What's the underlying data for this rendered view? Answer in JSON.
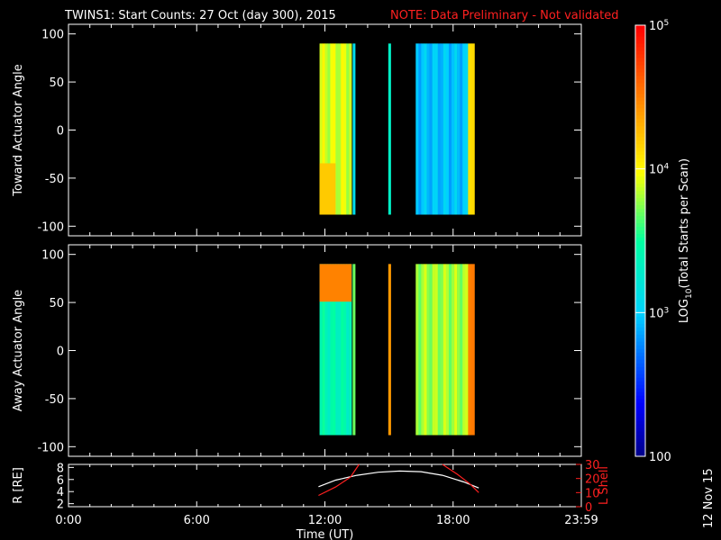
{
  "header": {
    "title": "TWINS1: Start Counts: 27 Oct (day 300), 2015",
    "note": "NOTE: Data Preliminary - Not validated"
  },
  "stamp": "12 Nov 15",
  "colors": {
    "note": "#ff2020",
    "lshell": "#ff2020",
    "background": "#000000",
    "axes": "#ffffff"
  },
  "chart_data": [
    {
      "type": "heatmap",
      "panel": "top",
      "ylabel": "Toward Actuator Angle",
      "ylim": [
        -110,
        110
      ],
      "yticks": [
        100,
        50,
        0,
        -50,
        -100
      ],
      "xlim_hours": [
        0,
        24
      ],
      "data_angle_range": [
        -88,
        90
      ],
      "colorbar": {
        "label": "LOG10(Total Starts per Scan)",
        "scale": "log",
        "range": [
          100,
          100000
        ],
        "ticks": [
          "100",
          "10^3",
          "10^4",
          "10^5"
        ]
      },
      "segments": [
        {
          "start": "11:45",
          "end": "13:15",
          "log10_counts": 3.9,
          "low_angle_band": 3.8,
          "note": "yellow-green"
        },
        {
          "start": "13:18",
          "end": "13:25",
          "log10_counts": 3.0
        },
        {
          "start": "14:58",
          "end": "15:05",
          "log10_counts": 3.2
        },
        {
          "start": "16:15",
          "end": "18:42",
          "log10_counts": 2.95
        },
        {
          "start": "18:42",
          "end": "19:00",
          "log10_counts": 4.2
        }
      ]
    },
    {
      "type": "heatmap",
      "panel": "middle",
      "ylabel": "Away Actuator Angle",
      "ylim": [
        -110,
        110
      ],
      "yticks": [
        100,
        50,
        0,
        -50,
        -100
      ],
      "xlim_hours": [
        0,
        24
      ],
      "data_angle_range": [
        -88,
        90
      ],
      "segments": [
        {
          "start": "11:45",
          "end": "13:15",
          "log10_counts": 3.4,
          "top_band": 4.5
        },
        {
          "start": "13:18",
          "end": "13:25",
          "log10_counts": 3.6
        },
        {
          "start": "14:58",
          "end": "15:05",
          "log10_counts": 4.3
        },
        {
          "start": "16:15",
          "end": "18:42",
          "log10_counts": 3.8
        },
        {
          "start": "18:42",
          "end": "19:00",
          "log10_counts": 4.6
        }
      ]
    },
    {
      "type": "line",
      "panel": "bottom",
      "ylabel_left": "R [RE]",
      "ylabel_right": "L Shell",
      "yticks_left": [
        2,
        4,
        6,
        8
      ],
      "yticks_right": [
        0,
        10,
        20,
        30
      ],
      "ylim_left": [
        1.5,
        8.5
      ],
      "ylim_right": [
        0,
        30
      ],
      "xlabel": "Time (UT)",
      "xticks": [
        "0:00",
        "6:00",
        "12:00",
        "18:00",
        "23:59"
      ],
      "series": [
        {
          "name": "R",
          "x_hours": [
            11.7,
            12.5,
            13.5,
            14.5,
            15.5,
            16.5,
            17.5,
            18.5,
            19.2
          ],
          "values": [
            4.8,
            5.9,
            6.7,
            7.2,
            7.4,
            7.3,
            6.7,
            5.6,
            4.6
          ]
        },
        {
          "name": "L",
          "x_hours": [
            11.7,
            12.5,
            13.2,
            13.6,
            17.5,
            18.2,
            18.8,
            19.2
          ],
          "values": [
            8,
            14,
            21,
            30,
            30,
            23,
            16,
            10
          ]
        }
      ]
    }
  ]
}
